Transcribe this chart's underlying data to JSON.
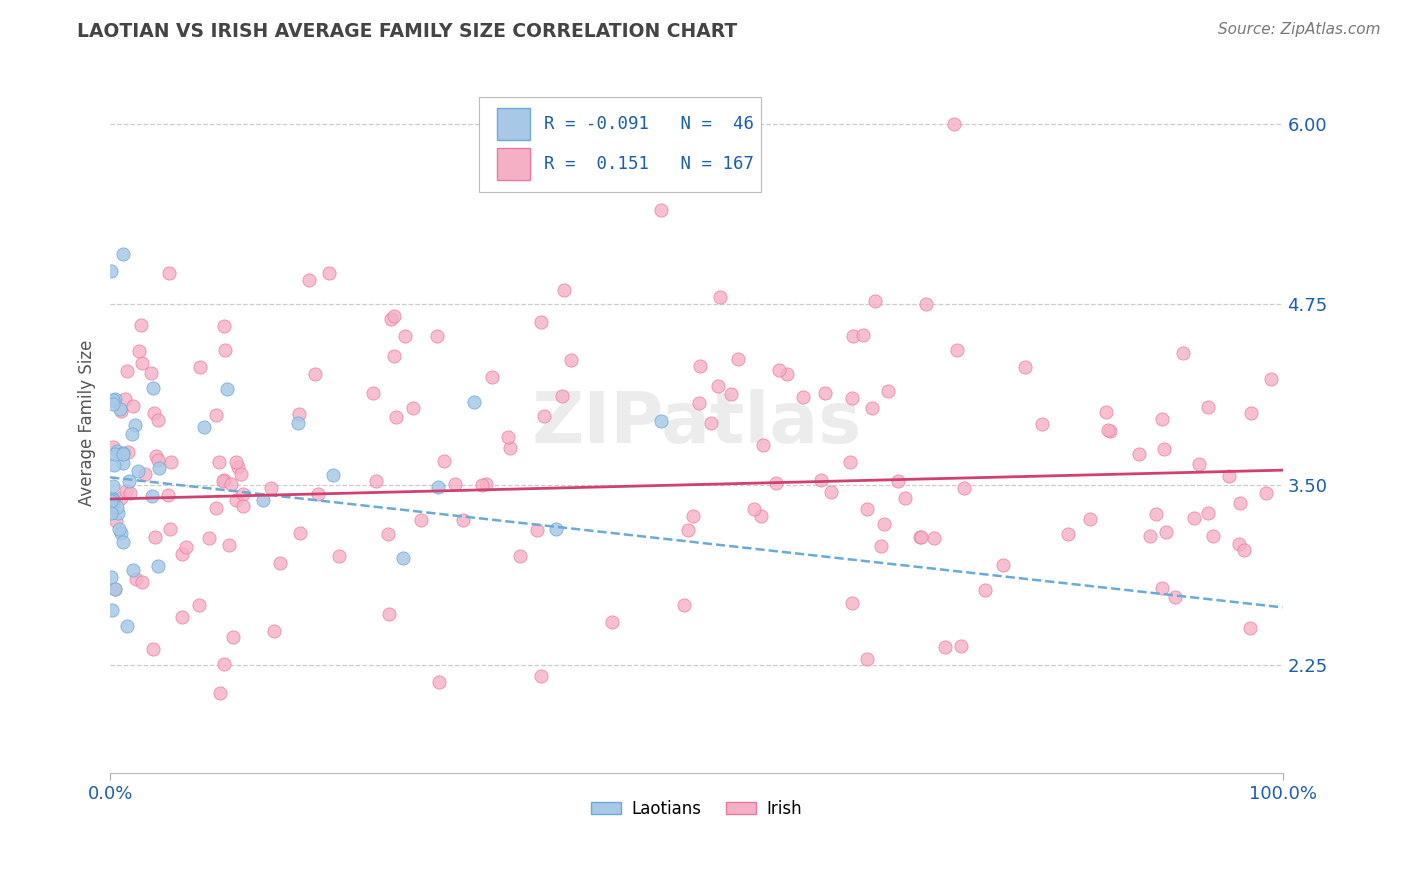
{
  "title": "LAOTIAN VS IRISH AVERAGE FAMILY SIZE CORRELATION CHART",
  "source": "Source: ZipAtlas.com",
  "ylabel": "Average Family Size",
  "xmin": 0.0,
  "xmax": 1.0,
  "ymin": 1.5,
  "ymax": 6.35,
  "yticks": [
    2.25,
    3.5,
    4.75,
    6.0
  ],
  "laotian_color": "#a8c8e8",
  "laotian_edge": "#6aaad4",
  "irish_color": "#f5b0c5",
  "irish_edge": "#e878a0",
  "trend_laotian_color": "#6aaad4",
  "trend_irish_color": "#d04070",
  "R_laotian": -0.091,
  "N_laotian": 46,
  "R_irish": 0.151,
  "N_irish": 167,
  "text_blue": "#1a5fa8",
  "title_color": "#444444",
  "grid_color": "#cccccc",
  "lao_trend_x0": 0.0,
  "lao_trend_y0": 3.55,
  "lao_trend_x1": 1.0,
  "lao_trend_y1": 2.65,
  "irish_trend_x0": 0.0,
  "irish_trend_y0": 3.4,
  "irish_trend_x1": 1.0,
  "irish_trend_y1": 3.6
}
